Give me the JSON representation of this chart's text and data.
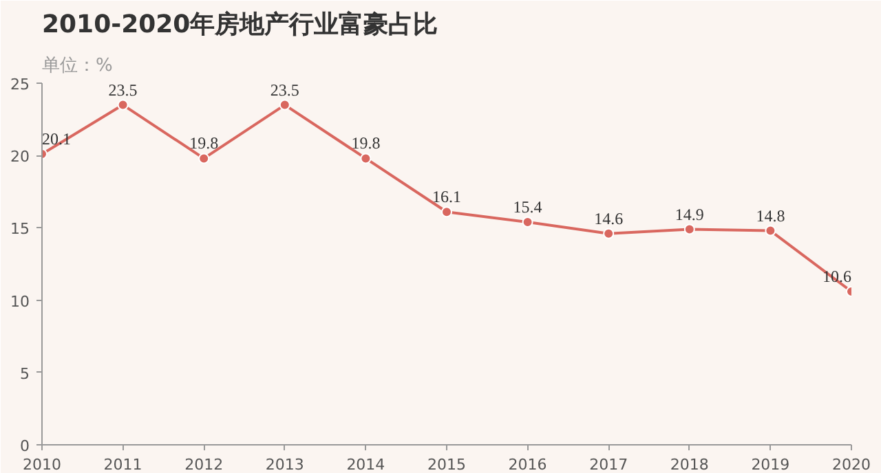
{
  "chart_data": {
    "type": "line",
    "title": "2010-2020年房地产行业富豪占比",
    "subtitle": "单位：%",
    "x": [
      2010,
      2011,
      2012,
      2013,
      2014,
      2015,
      2016,
      2017,
      2018,
      2019,
      2020
    ],
    "values": [
      20.1,
      23.5,
      19.8,
      23.5,
      19.8,
      16.1,
      15.4,
      14.6,
      14.9,
      14.8,
      10.6
    ],
    "color": "#d9675f",
    "xlim": [
      2010,
      2020
    ],
    "xticks": [
      2010,
      2011,
      2012,
      2013,
      2014,
      2015,
      2016,
      2017,
      2018,
      2019,
      2020
    ],
    "ylim": [
      0,
      25
    ],
    "yticks": [
      0,
      5,
      10,
      15,
      20,
      25
    ],
    "data_labels": true,
    "marker": "circle",
    "grid": false,
    "line_style": "solid"
  }
}
